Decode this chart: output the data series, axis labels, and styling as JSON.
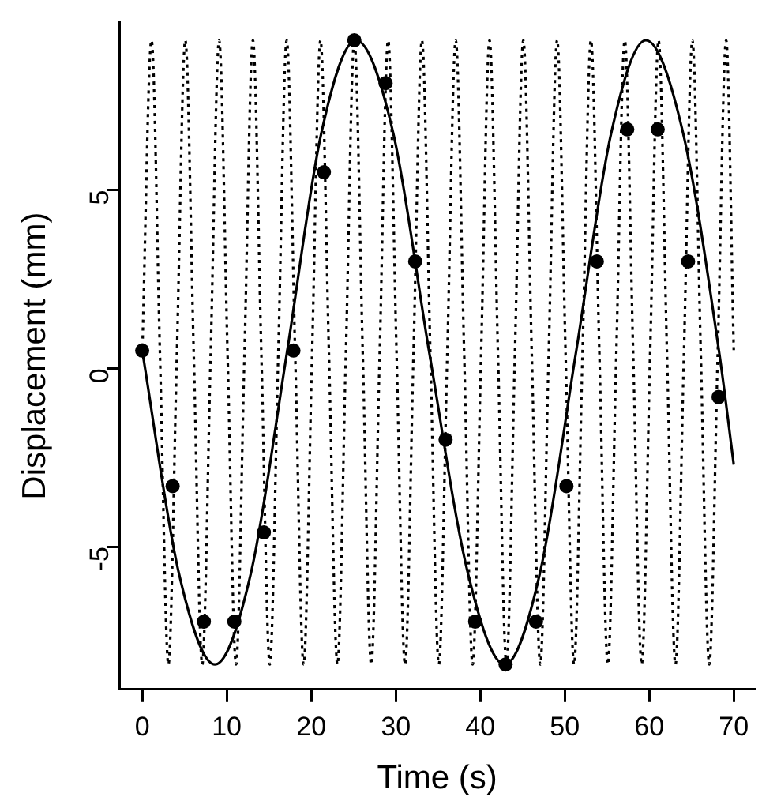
{
  "chart_data": {
    "type": "scatter",
    "xlabel": "Time (s)",
    "ylabel": "Displacement (mm)",
    "xlim": [
      -2.7,
      72.5
    ],
    "ylim": [
      -9.0,
      9.7
    ],
    "xticks": [
      0,
      10,
      20,
      30,
      40,
      50,
      60,
      70
    ],
    "yticks": [
      -5,
      0,
      5
    ],
    "grid": false,
    "legend": false,
    "series": [
      {
        "type": "line",
        "line_style": "dotted",
        "marker": "none",
        "color": "#000000",
        "x": [
          0,
          1.1,
          2.1,
          3.1,
          4.1,
          5.1,
          6.1,
          7.1,
          8.1,
          9.1,
          10.1,
          11.1,
          12.1,
          13.1,
          14.1,
          15.1,
          16.1,
          17.1,
          18.1,
          19.1,
          20.1,
          21.1,
          22.1,
          23.1,
          24.1,
          25.1,
          26.1,
          27.1,
          28.1,
          29.1,
          30.1,
          31.1,
          32.1,
          33.1,
          34.1,
          35.1,
          36.1,
          37.1,
          38.1,
          39.1,
          40.1,
          41.1,
          42.1,
          43.1,
          44.1,
          45.1,
          46.1,
          47.1,
          48.1,
          49.1,
          50.1,
          51.1,
          52.1,
          53.1,
          54.1,
          55.1,
          56.1,
          57.1,
          58.1,
          59.1,
          60.1,
          61.1,
          62.1,
          63.1,
          64.1,
          65.1,
          66.1,
          67.1,
          68.1,
          69.1,
          70
        ],
        "values": [
          0.4,
          9.2,
          0.4,
          -8.3,
          0.4,
          9.2,
          0.4,
          -8.3,
          0.4,
          9.2,
          0.4,
          -8.3,
          0.4,
          9.2,
          0.4,
          -8.3,
          0.4,
          9.2,
          0.4,
          -8.3,
          0.4,
          9.2,
          0.4,
          -8.3,
          0.4,
          9.2,
          0.4,
          -8.3,
          0.4,
          9.2,
          0.4,
          -8.3,
          0.4,
          9.2,
          0.4,
          -8.3,
          0.4,
          9.2,
          0.4,
          -8.3,
          0.4,
          9.2,
          0.4,
          -8.3,
          0.4,
          9.2,
          0.4,
          -8.3,
          0.4,
          9.2,
          0.4,
          -8.3,
          0.4,
          9.2,
          0.4,
          -8.3,
          0.4,
          9.2,
          0.4,
          -8.3,
          0.4,
          9.2,
          0.4,
          -8.3,
          0.4,
          9.2,
          0.4,
          -8.3,
          0.4,
          9.2,
          0.5
        ]
      },
      {
        "type": "line",
        "line_style": "solid",
        "marker": "none",
        "color": "#000000",
        "x": [
          0,
          4.3,
          8.6,
          12.9,
          17.1,
          21.2,
          25.3,
          29.7,
          34.0,
          38.5,
          42.9,
          47.1,
          51.3,
          55.5,
          59.6,
          64.0,
          68.3,
          70
        ],
        "values": [
          0.5,
          -5.7,
          -8.3,
          -5.7,
          0.4,
          6.6,
          9.2,
          6.6,
          0.4,
          -5.7,
          -8.3,
          -5.7,
          0.4,
          6.6,
          9.2,
          6.6,
          0.4,
          -2.7
        ]
      },
      {
        "type": "scatter",
        "marker": "circle",
        "color": "#000000",
        "x": [
          0,
          3.6,
          7.3,
          10.9,
          14.4,
          17.9,
          21.5,
          25.1,
          28.8,
          32.3,
          35.9,
          39.4,
          43.0,
          46.6,
          50.2,
          53.8,
          57.4,
          61.0,
          64.6,
          68.2
        ],
        "values": [
          0.5,
          -3.3,
          -7.1,
          -7.1,
          -4.6,
          0.5,
          5.5,
          9.2,
          8.0,
          3.0,
          -2.0,
          -7.1,
          -8.3,
          -7.1,
          -3.3,
          3.0,
          6.7,
          6.7,
          3.0,
          -0.8
        ]
      }
    ]
  }
}
